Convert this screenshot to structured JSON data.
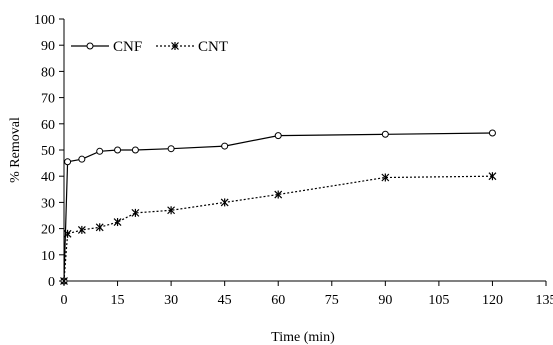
{
  "chart_data": {
    "type": "line",
    "title": "",
    "xlabel": "Time (min)",
    "ylabel": "% Removal",
    "xlim": [
      0,
      135
    ],
    "ylim": [
      0,
      100
    ],
    "xticks": [
      0,
      15,
      30,
      45,
      60,
      75,
      90,
      105,
      120,
      135
    ],
    "yticks": [
      0,
      10,
      20,
      30,
      40,
      50,
      60,
      70,
      80,
      90,
      100
    ],
    "grid": false,
    "legend_position": "top-left",
    "series": [
      {
        "name": "CNF",
        "line_style": "solid",
        "marker": "circle",
        "color": "#000000",
        "x": [
          0,
          1,
          5,
          10,
          15,
          20,
          30,
          45,
          60,
          90,
          120
        ],
        "y": [
          0,
          45.5,
          46.5,
          49.5,
          50,
          50,
          50.5,
          51.5,
          55.5,
          56,
          56.5
        ]
      },
      {
        "name": "CNT",
        "line_style": "dotted",
        "marker": "asterisk",
        "color": "#000000",
        "x": [
          0,
          1,
          5,
          10,
          15,
          20,
          30,
          45,
          60,
          90,
          120
        ],
        "y": [
          0,
          18,
          19.5,
          20.5,
          22.5,
          26,
          27,
          30,
          33,
          39.5,
          40
        ]
      }
    ]
  }
}
